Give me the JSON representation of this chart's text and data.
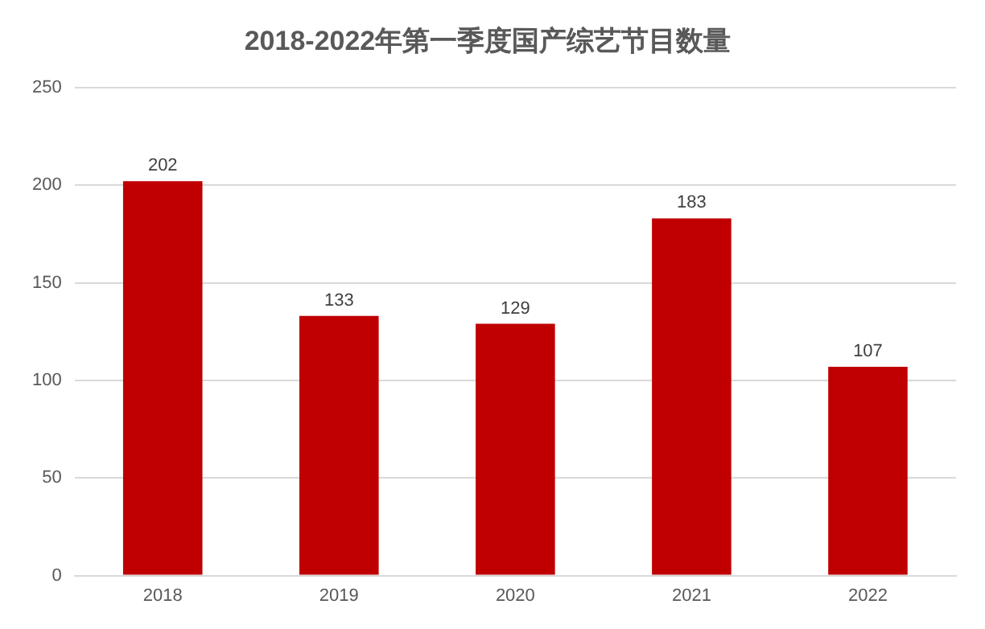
{
  "chart_data": {
    "type": "bar",
    "title": "2018-2022年第一季度国产综艺节目数量",
    "categories": [
      "2018",
      "2019",
      "2020",
      "2021",
      "2022"
    ],
    "values": [
      202,
      133,
      129,
      183,
      107
    ],
    "color": "#c00000",
    "ylim": [
      0,
      250
    ],
    "yticks": [
      0,
      50,
      100,
      150,
      200,
      250
    ],
    "grid": "y",
    "data_labels": true
  }
}
